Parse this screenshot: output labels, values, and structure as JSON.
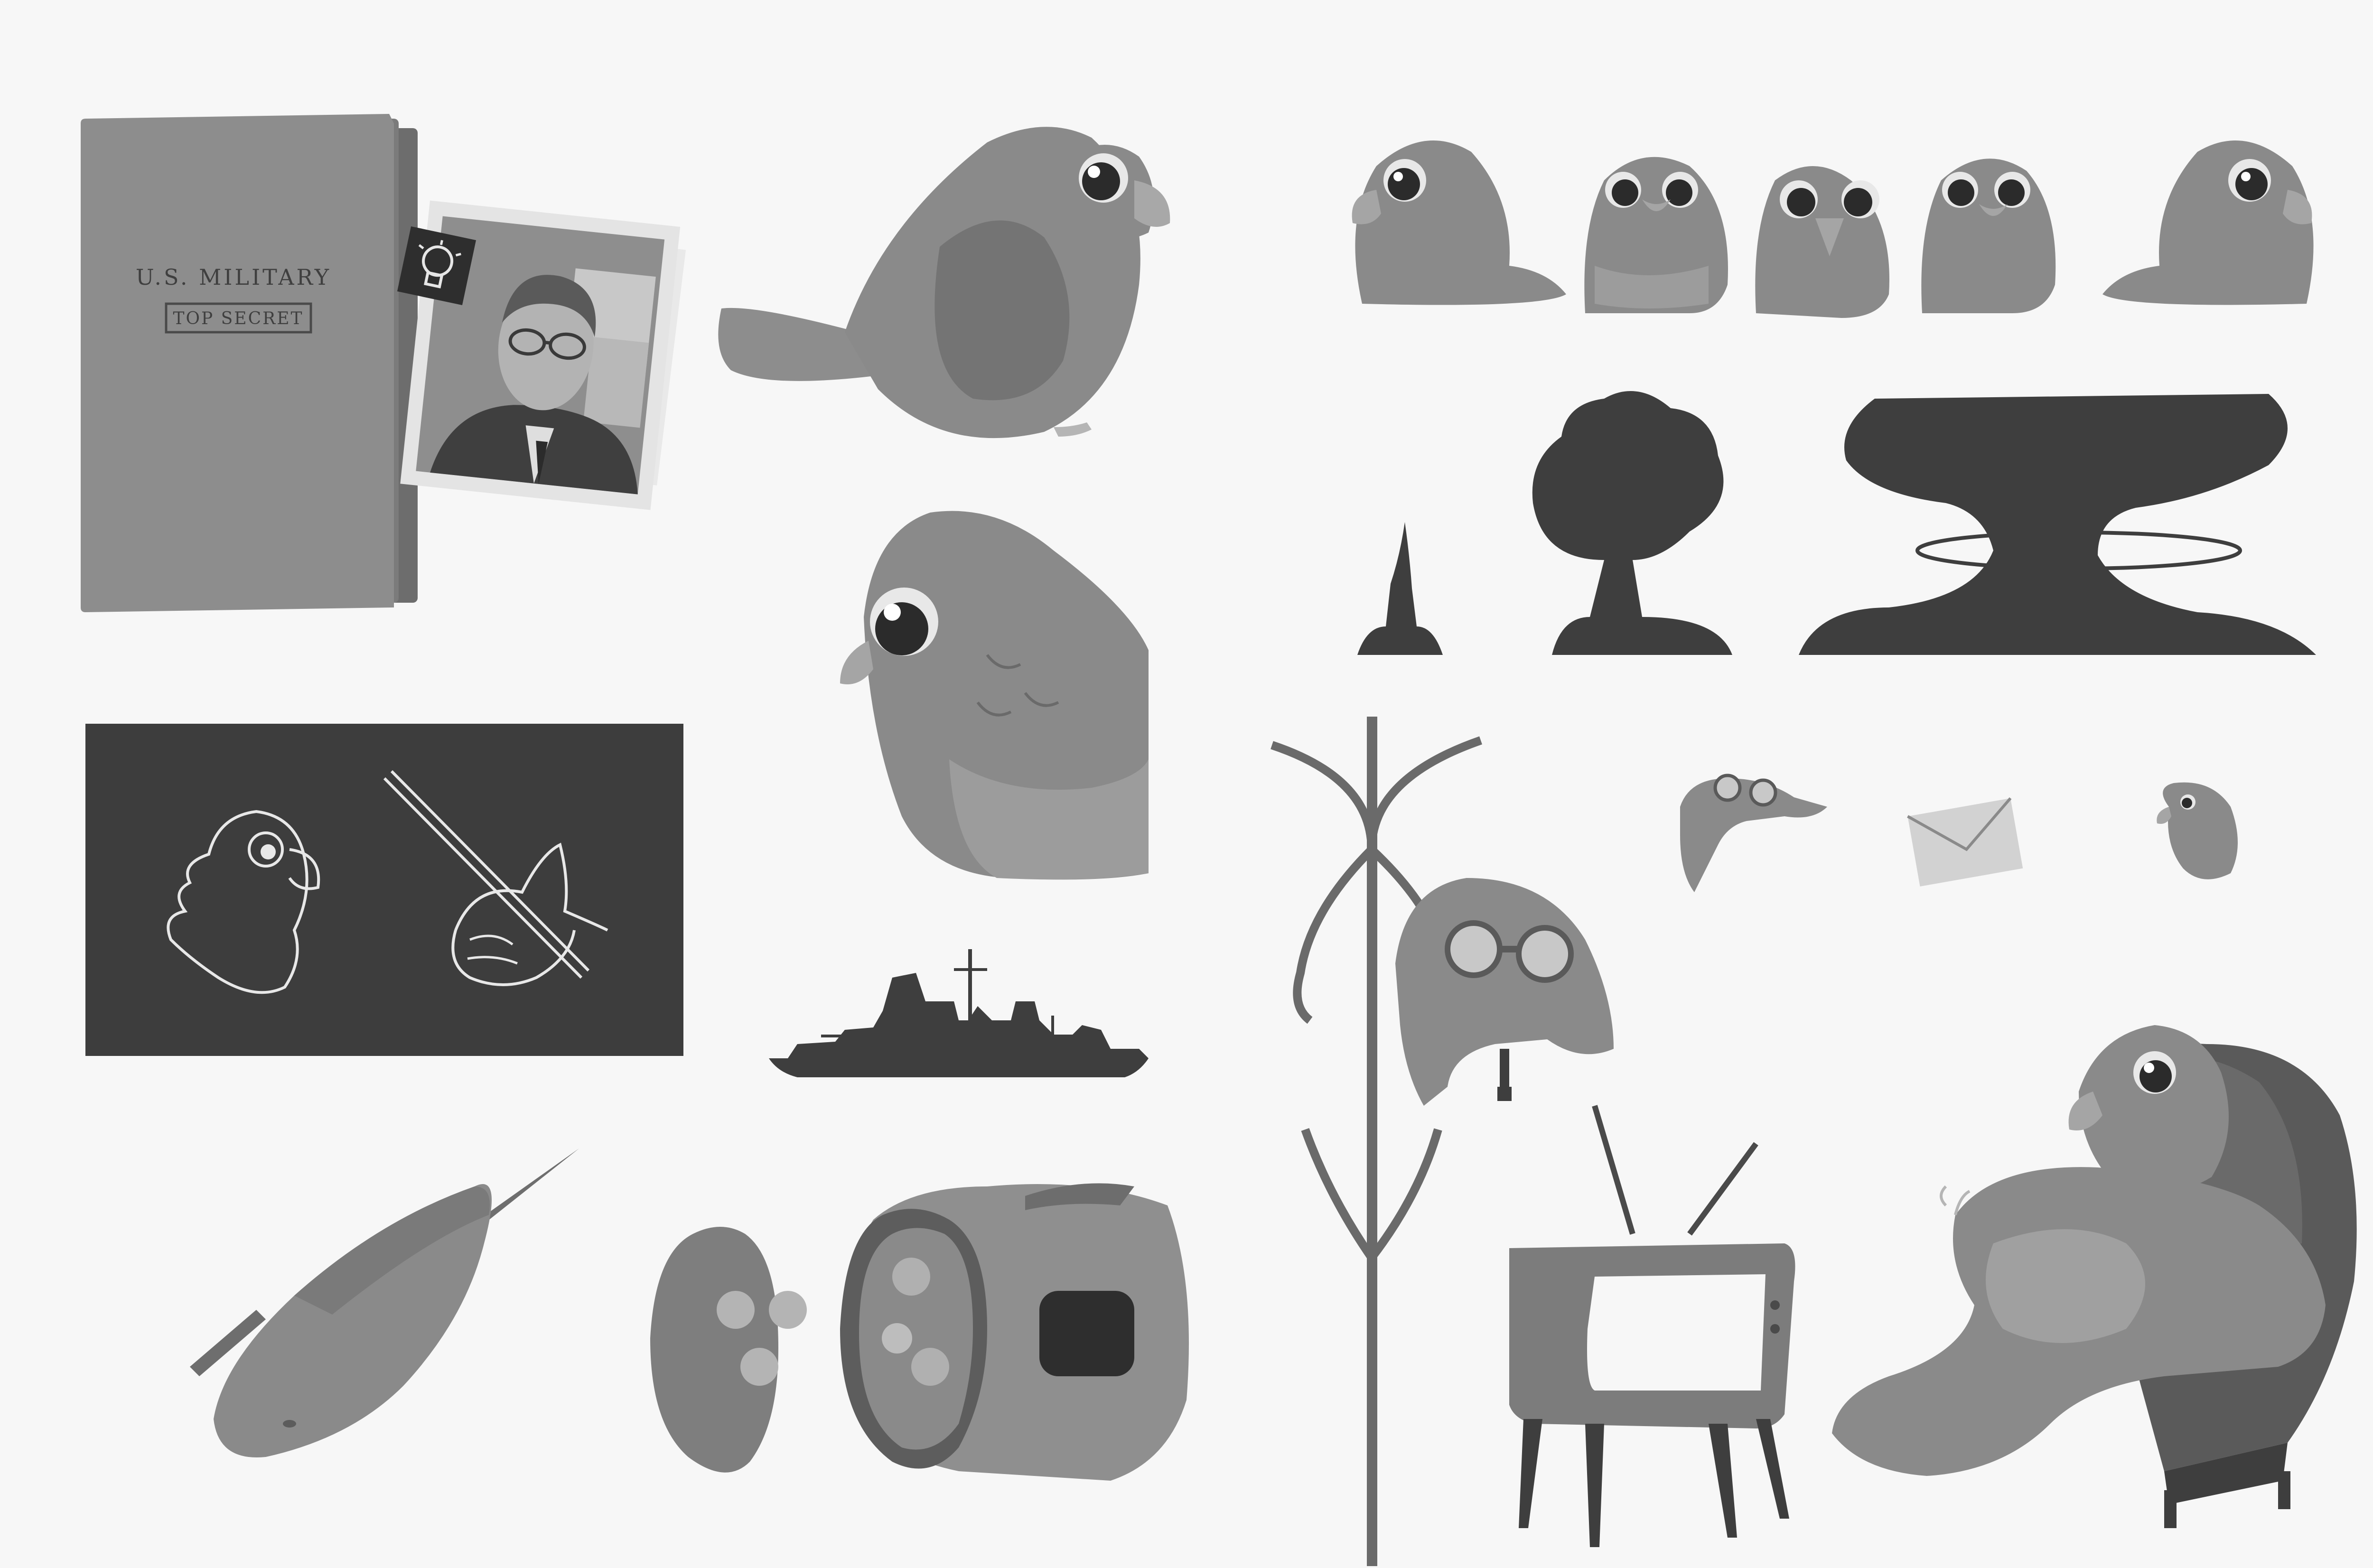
{
  "folder": {
    "title": "U.S. MILITARY",
    "stamp": "TOP SECRET"
  },
  "palette": {
    "background": "#f7f7f7",
    "bird_body": "#8a8a8a",
    "bird_belly": "#9e9e9e",
    "bird_dark": "#6f6f6f",
    "silhouette": "#3e3e3e",
    "chalkboard": "#3d3d3d",
    "chalk": "#e8e8e8"
  },
  "icons": [
    "folder-icon",
    "photo-icon",
    "lightbulb-icon",
    "pigeon-icon",
    "chalkboard-icon",
    "battleship-icon",
    "missile-icon",
    "capsule-icon",
    "coat-rack-icon",
    "aviator-helmet-icon",
    "envelope-icon",
    "television-icon",
    "armchair-icon",
    "mushroom-cloud-icon"
  ]
}
